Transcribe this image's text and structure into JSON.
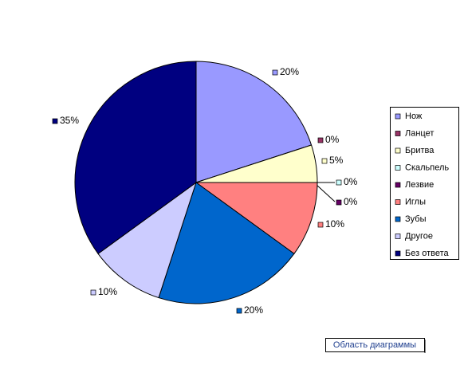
{
  "chart_data": {
    "type": "pie",
    "categories": [
      "Нож",
      "Ланцет",
      "Бритва",
      "Скальпель",
      "Лезвие",
      "Иглы",
      "Зубы",
      "Другое",
      "Без ответа"
    ],
    "values": [
      20,
      0,
      5,
      0,
      0,
      10,
      20,
      10,
      35
    ],
    "value_labels": [
      "20%",
      "0%",
      "5%",
      "0%",
      "0%",
      "10%",
      "20%",
      "10%",
      "35%"
    ],
    "colors": [
      "#9999ff",
      "#993366",
      "#ffffcc",
      "#ccffff",
      "#660066",
      "#ff8080",
      "#0066cc",
      "#ccccff",
      "#000080"
    ],
    "legend": "right",
    "tooltip": "Область диаграммы"
  }
}
